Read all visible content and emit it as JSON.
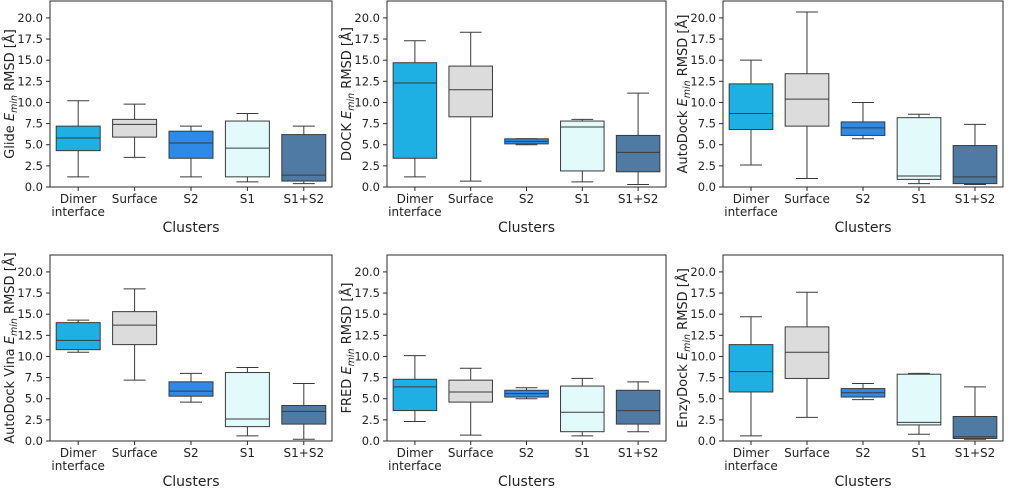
{
  "colors": {
    "Dimer interface": "#1eb0e2",
    "Surface": "#dcdcdc",
    "S2": "#2e8ae6",
    "S1": "#e2fafa",
    "S1+S2": "#4f7aa3",
    "line": "#3a3a3a",
    "frame": "#2a2a2a"
  },
  "chart_data": [
    {
      "type": "box",
      "ylabel": {
        "prefix": "Glide ",
        "e": "E",
        "sub": "min",
        "suffix": " RMSD [Å]"
      },
      "xlabel": "Clusters",
      "categories": [
        "Dimer interface",
        "Surface",
        "S2",
        "S1",
        "S1+S2"
      ],
      "category_lines": [
        [
          "Dimer",
          "interface"
        ],
        [
          "Surface"
        ],
        [
          "S2"
        ],
        [
          "S1"
        ],
        [
          "S1+S2"
        ]
      ],
      "ylim": [
        0,
        22
      ],
      "yticks": [
        "0.0",
        "2.5",
        "5.0",
        "7.5",
        "10.0",
        "12.5",
        "15.0",
        "17.5",
        "20.0"
      ],
      "boxes": [
        {
          "whislo": 1.2,
          "q1": 4.3,
          "med": 5.8,
          "q3": 7.2,
          "whishi": 10.2
        },
        {
          "whislo": 3.5,
          "q1": 5.9,
          "med": 7.4,
          "q3": 8.0,
          "whishi": 9.8
        },
        {
          "whislo": 1.2,
          "q1": 3.4,
          "med": 5.2,
          "q3": 6.6,
          "whishi": 7.2
        },
        {
          "whislo": 0.6,
          "q1": 1.2,
          "med": 4.6,
          "q3": 7.8,
          "whishi": 8.7
        },
        {
          "whislo": 0.4,
          "q1": 0.7,
          "med": 1.4,
          "q3": 6.2,
          "whishi": 7.2
        }
      ]
    },
    {
      "type": "box",
      "ylabel": {
        "prefix": "DOCK ",
        "e": "E",
        "sub": "min",
        "suffix": " RMSD [Å]"
      },
      "xlabel": "Clusters",
      "categories": [
        "Dimer interface",
        "Surface",
        "S2",
        "S1",
        "S1+S2"
      ],
      "category_lines": [
        [
          "Dimer",
          "interface"
        ],
        [
          "Surface"
        ],
        [
          "S2"
        ],
        [
          "S1"
        ],
        [
          "S1+S2"
        ]
      ],
      "ylim": [
        0,
        22
      ],
      "yticks": [
        "0.0",
        "2.5",
        "5.0",
        "7.5",
        "10.0",
        "12.5",
        "15.0",
        "17.5",
        "20.0"
      ],
      "boxes": [
        {
          "whislo": 1.2,
          "q1": 3.4,
          "med": 12.3,
          "q3": 14.7,
          "whishi": 17.3
        },
        {
          "whislo": 0.7,
          "q1": 8.3,
          "med": 11.5,
          "q3": 14.3,
          "whishi": 18.3
        },
        {
          "whislo": 5.0,
          "q1": 5.1,
          "med": 5.4,
          "q3": 5.7,
          "whishi": 5.7
        },
        {
          "whislo": 0.6,
          "q1": 1.9,
          "med": 7.1,
          "q3": 7.8,
          "whishi": 8.0
        },
        {
          "whislo": 0.3,
          "q1": 1.8,
          "med": 4.1,
          "q3": 6.1,
          "whishi": 11.1
        }
      ]
    },
    {
      "type": "box",
      "ylabel": {
        "prefix": "AutoDock ",
        "e": "E",
        "sub": "min",
        "suffix": " RMSD [Å]"
      },
      "xlabel": "Clusters",
      "categories": [
        "Dimer interface",
        "Surface",
        "S2",
        "S1",
        "S1+S2"
      ],
      "category_lines": [
        [
          "Dimer",
          "interface"
        ],
        [
          "Surface"
        ],
        [
          "S2"
        ],
        [
          "S1"
        ],
        [
          "S1+S2"
        ]
      ],
      "ylim": [
        0,
        22
      ],
      "yticks": [
        "0.0",
        "2.5",
        "5.0",
        "7.5",
        "10.0",
        "12.5",
        "15.0",
        "17.5",
        "20.0"
      ],
      "boxes": [
        {
          "whislo": 2.6,
          "q1": 6.8,
          "med": 8.7,
          "q3": 12.2,
          "whishi": 15.0
        },
        {
          "whislo": 1.0,
          "q1": 7.2,
          "med": 10.4,
          "q3": 13.4,
          "whishi": 20.7
        },
        {
          "whislo": 5.7,
          "q1": 6.1,
          "med": 7.0,
          "q3": 7.7,
          "whishi": 10.0
        },
        {
          "whislo": 0.4,
          "q1": 0.9,
          "med": 1.3,
          "q3": 8.2,
          "whishi": 8.6
        },
        {
          "whislo": 0.3,
          "q1": 0.4,
          "med": 1.2,
          "q3": 4.9,
          "whishi": 7.4
        }
      ]
    },
    {
      "type": "box",
      "ylabel": {
        "prefix": "AutoDock Vina ",
        "e": "E",
        "sub": "min",
        "suffix": " RMSD [Å]"
      },
      "xlabel": "Clusters",
      "categories": [
        "Dimer interface",
        "Surface",
        "S2",
        "S1",
        "S1+S2"
      ],
      "category_lines": [
        [
          "Dimer",
          "interface"
        ],
        [
          "Surface"
        ],
        [
          "S2"
        ],
        [
          "S1"
        ],
        [
          "S1+S2"
        ]
      ],
      "ylim": [
        0,
        22
      ],
      "yticks": [
        "0.0",
        "2.5",
        "5.0",
        "7.5",
        "10.0",
        "12.5",
        "15.0",
        "17.5",
        "20.0"
      ],
      "boxes": [
        {
          "whislo": 10.5,
          "q1": 10.8,
          "med": 11.9,
          "q3": 14.0,
          "whishi": 14.3
        },
        {
          "whislo": 7.2,
          "q1": 11.4,
          "med": 13.7,
          "q3": 15.3,
          "whishi": 18.0
        },
        {
          "whislo": 4.6,
          "q1": 5.3,
          "med": 5.9,
          "q3": 7.0,
          "whishi": 8.0
        },
        {
          "whislo": 0.6,
          "q1": 1.7,
          "med": 2.6,
          "q3": 8.1,
          "whishi": 8.7
        },
        {
          "whislo": 0.2,
          "q1": 2.0,
          "med": 3.5,
          "q3": 4.2,
          "whishi": 6.8
        }
      ]
    },
    {
      "type": "box",
      "ylabel": {
        "prefix": "FRED ",
        "e": "E",
        "sub": "min",
        "suffix": " RMSD [Å]"
      },
      "xlabel": "Clusters",
      "categories": [
        "Dimer interface",
        "Surface",
        "S2",
        "S1",
        "S1+S2"
      ],
      "category_lines": [
        [
          "Dimer",
          "interface"
        ],
        [
          "Surface"
        ],
        [
          "S2"
        ],
        [
          "S1"
        ],
        [
          "S1+S2"
        ]
      ],
      "ylim": [
        0,
        22
      ],
      "yticks": [
        "0.0",
        "2.5",
        "5.0",
        "7.5",
        "10.0",
        "12.5",
        "15.0",
        "17.5",
        "20.0"
      ],
      "boxes": [
        {
          "whislo": 2.3,
          "q1": 3.6,
          "med": 6.4,
          "q3": 7.3,
          "whishi": 10.1
        },
        {
          "whislo": 0.7,
          "q1": 4.6,
          "med": 5.8,
          "q3": 7.2,
          "whishi": 8.6
        },
        {
          "whislo": 5.0,
          "q1": 5.2,
          "med": 5.6,
          "q3": 6.0,
          "whishi": 6.3
        },
        {
          "whislo": 0.6,
          "q1": 1.1,
          "med": 3.4,
          "q3": 6.5,
          "whishi": 7.4
        },
        {
          "whislo": 1.1,
          "q1": 2.0,
          "med": 3.6,
          "q3": 6.0,
          "whishi": 7.0
        }
      ]
    },
    {
      "type": "box",
      "ylabel": {
        "prefix": "EnzyDock ",
        "e": "E",
        "sub": "min",
        "suffix": " RMSD [Å]"
      },
      "xlabel": "Clusters",
      "categories": [
        "Dimer interface",
        "Surface",
        "S2",
        "S1",
        "S1+S2"
      ],
      "category_lines": [
        [
          "Dimer",
          "interface"
        ],
        [
          "Surface"
        ],
        [
          "S2"
        ],
        [
          "S1"
        ],
        [
          "S1+S2"
        ]
      ],
      "ylim": [
        0,
        22
      ],
      "yticks": [
        "0.0",
        "2.5",
        "5.0",
        "7.5",
        "10.0",
        "12.5",
        "15.0",
        "17.5",
        "20.0"
      ],
      "boxes": [
        {
          "whislo": 0.6,
          "q1": 5.8,
          "med": 8.2,
          "q3": 11.4,
          "whishi": 14.7
        },
        {
          "whislo": 2.8,
          "q1": 7.4,
          "med": 10.5,
          "q3": 13.5,
          "whishi": 17.6
        },
        {
          "whislo": 4.9,
          "q1": 5.2,
          "med": 5.7,
          "q3": 6.2,
          "whishi": 6.8
        },
        {
          "whislo": 0.8,
          "q1": 1.9,
          "med": 2.2,
          "q3": 7.9,
          "whishi": 8.0
        },
        {
          "whislo": 0.2,
          "q1": 0.3,
          "med": 0.5,
          "q3": 2.9,
          "whishi": 6.4
        }
      ]
    }
  ]
}
